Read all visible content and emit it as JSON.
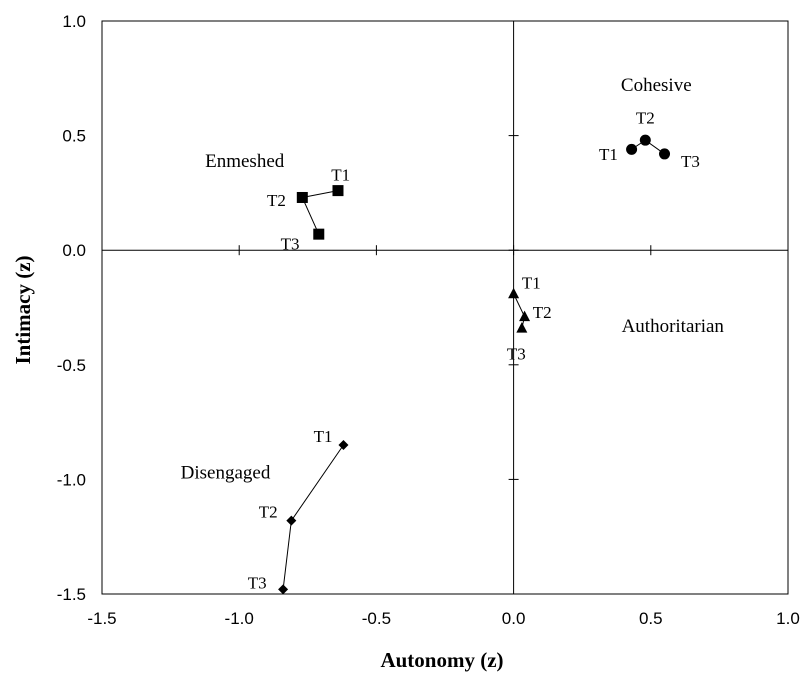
{
  "chart_data": {
    "type": "scatter",
    "xlabel": "Autonomy (z)",
    "ylabel": "Intimacy (z)",
    "xlim": [
      -1.5,
      1.0
    ],
    "ylim": [
      -1.5,
      1.0
    ],
    "xticks": [
      "-1.5",
      "-1.0",
      "-0.5",
      "0.0",
      "0.5",
      "1.0"
    ],
    "yticks": [
      "-1.5",
      "-1.0",
      "-0.5",
      "0.0",
      "0.5",
      "1.0"
    ],
    "grid": false,
    "series": [
      {
        "name": "Cohesive",
        "marker": "circle",
        "points": [
          {
            "label": "T1",
            "x": 0.43,
            "y": 0.44
          },
          {
            "label": "T2",
            "x": 0.48,
            "y": 0.48
          },
          {
            "label": "T3",
            "x": 0.55,
            "y": 0.42
          }
        ]
      },
      {
        "name": "Enmeshed",
        "marker": "square",
        "points": [
          {
            "label": "T1",
            "x": -0.64,
            "y": 0.26
          },
          {
            "label": "T2",
            "x": -0.77,
            "y": 0.23
          },
          {
            "label": "T3",
            "x": -0.71,
            "y": 0.07
          }
        ]
      },
      {
        "name": "Authoritarian",
        "marker": "triangle",
        "points": [
          {
            "label": "T1",
            "x": 0.0,
            "y": -0.19
          },
          {
            "label": "T2",
            "x": 0.04,
            "y": -0.29
          },
          {
            "label": "T3",
            "x": 0.03,
            "y": -0.34
          }
        ]
      },
      {
        "name": "Disengaged",
        "marker": "diamond",
        "points": [
          {
            "label": "T1",
            "x": -0.62,
            "y": -0.85
          },
          {
            "label": "T2",
            "x": -0.81,
            "y": -1.18
          },
          {
            "label": "T3",
            "x": -0.84,
            "y": -1.48
          }
        ]
      }
    ]
  }
}
